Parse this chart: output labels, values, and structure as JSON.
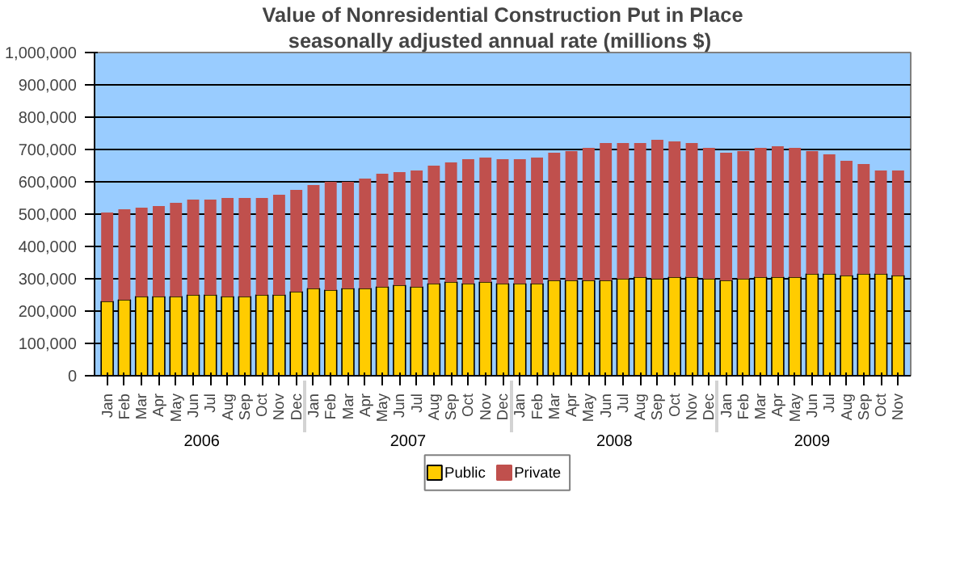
{
  "chart_data": {
    "type": "bar",
    "stacked": true,
    "title": "Value of Nonresidential Construction Put in Place",
    "subtitle": "seasonally adjusted annual rate (millions  $)",
    "categories": [
      "Jan",
      "Feb",
      "Mar",
      "Apr",
      "May",
      "Jun",
      "Jul",
      "Aug",
      "Sep",
      "Oct",
      "Nov",
      "Dec",
      "Jan",
      "Feb",
      "Mar",
      "Apr",
      "May",
      "Jun",
      "Jul",
      "Aug",
      "Sep",
      "Oct",
      "Nov",
      "Dec",
      "Jan",
      "Feb",
      "Mar",
      "Apr",
      "May",
      "Jun",
      "Jul",
      "Aug",
      "Sep",
      "Oct",
      "Nov",
      "Dec",
      "Jan",
      "Feb",
      "Mar",
      "Apr",
      "May",
      "Jun",
      "Jul",
      "Aug",
      "Sep",
      "Oct",
      "Nov"
    ],
    "annotations": [
      "2006",
      "2007",
      "2008",
      "2009"
    ],
    "series": [
      {
        "name": "Public",
        "color": "#ffcc00",
        "values": [
          230000,
          235000,
          245000,
          245000,
          245000,
          250000,
          250000,
          245000,
          245000,
          250000,
          250000,
          260000,
          270000,
          265000,
          270000,
          270000,
          275000,
          280000,
          275000,
          285000,
          290000,
          285000,
          290000,
          285000,
          285000,
          285000,
          295000,
          295000,
          295000,
          295000,
          300000,
          305000,
          300000,
          305000,
          305000,
          300000,
          295000,
          300000,
          305000,
          305000,
          305000,
          315000,
          315000,
          310000,
          315000,
          315000,
          310000
        ]
      },
      {
        "name": "Private",
        "color": "#c0504d",
        "values": [
          275000,
          280000,
          275000,
          280000,
          290000,
          295000,
          295000,
          305000,
          305000,
          300000,
          310000,
          315000,
          320000,
          335000,
          330000,
          340000,
          350000,
          350000,
          360000,
          365000,
          370000,
          385000,
          385000,
          385000,
          385000,
          390000,
          395000,
          400000,
          410000,
          425000,
          420000,
          415000,
          430000,
          420000,
          415000,
          405000,
          395000,
          395000,
          400000,
          405000,
          400000,
          380000,
          370000,
          355000,
          340000,
          320000,
          325000
        ]
      }
    ],
    "ylim": [
      0,
      1000000
    ],
    "yticks": [
      0,
      {
        "value": 100000,
        "label": "100,000"
      },
      {
        "value": 200000,
        "label": "200,000"
      },
      {
        "value": 300000,
        "label": "300,000"
      },
      {
        "value": 400000,
        "label": "400,000"
      },
      {
        "value": 500000,
        "label": "500,000"
      },
      {
        "value": 600000,
        "label": "600,000"
      },
      {
        "value": 700000,
        "label": "700,000"
      },
      {
        "value": 800000,
        "label": "800,000"
      },
      {
        "value": 900000,
        "label": "900,000"
      },
      {
        "value": 1000000,
        "label": "1,000,000"
      }
    ],
    "grid": "y",
    "legend": "bottom"
  }
}
